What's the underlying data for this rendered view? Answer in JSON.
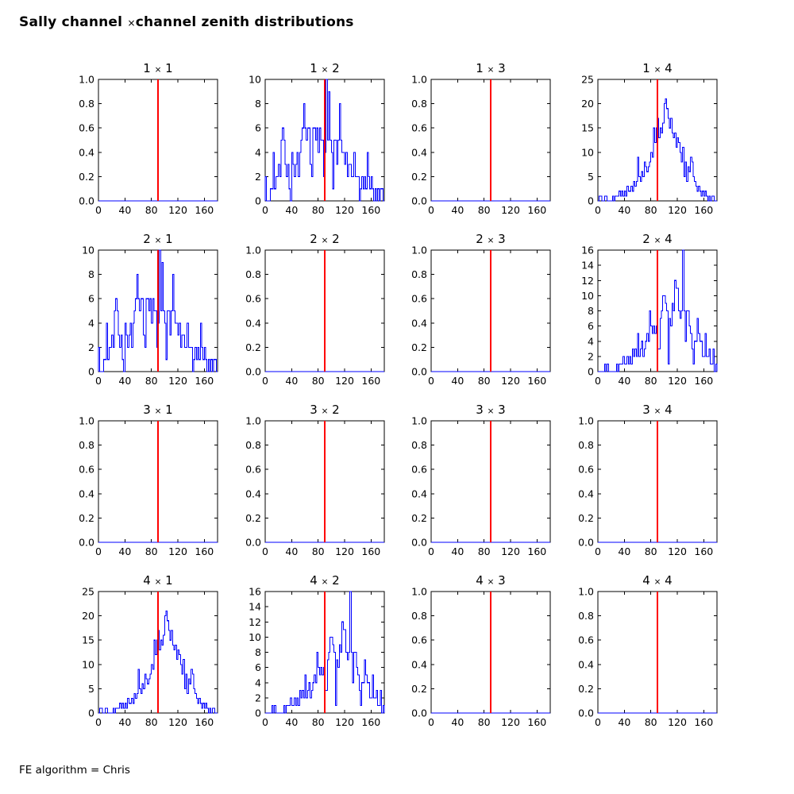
{
  "figure": {
    "title": "Sally channel ×channel zenith distributions",
    "footer": "FE algorithm = Chris",
    "background": "#ffffff"
  },
  "style": {
    "hist_color": "#0000ff",
    "marker_color": "#ff0000",
    "frame_color": "#000000",
    "text_color": "#000000"
  },
  "chart_data": {
    "type": "bar",
    "note": "4x4 grid of step histograms of zenith angle per channel pair; red vertical marker at x=90 in every panel; empty panels show a flat zero histogram",
    "x_axis": {
      "min": 0,
      "max": 180,
      "ticks": [
        0,
        40,
        80,
        120,
        160
      ],
      "bin_width": 2
    },
    "marker_x": 90,
    "subplots": [
      {
        "title": "1 × 1",
        "row": 1,
        "col": 1,
        "ylim": [
          0,
          1
        ],
        "yticks": [
          0,
          0.2,
          0.4,
          0.6,
          0.8,
          1.0
        ],
        "ytick_labels": [
          "0.0",
          "0.2",
          "0.4",
          "0.6",
          "0.8",
          "1.0"
        ],
        "xtick_labels": [
          "0",
          "40",
          "80",
          "120",
          "160"
        ],
        "values": []
      },
      {
        "title": "1 × 2",
        "row": 1,
        "col": 2,
        "ylim": [
          0,
          10
        ],
        "yticks": [
          0,
          2,
          4,
          6,
          8,
          10
        ],
        "ytick_labels": [
          "0",
          "2",
          "4",
          "6",
          "8",
          "10"
        ],
        "xtick_labels": [
          "0",
          "40",
          "80",
          "120",
          "160"
        ],
        "values": [
          2,
          0,
          0,
          0,
          1,
          1,
          4,
          1,
          2,
          2,
          3,
          2,
          5,
          6,
          5,
          3,
          2,
          3,
          1,
          0,
          4,
          3,
          2,
          3,
          4,
          2,
          4,
          5,
          6,
          8,
          6,
          5,
          6,
          6,
          3,
          2,
          6,
          6,
          5,
          6,
          4,
          6,
          5,
          5,
          2,
          4,
          10,
          5,
          9,
          5,
          4,
          1,
          5,
          5,
          3,
          5,
          8,
          5,
          4,
          4,
          3,
          4,
          2,
          3,
          3,
          2,
          2,
          4,
          2,
          2,
          2,
          0,
          1,
          2,
          1,
          2,
          1,
          4,
          2,
          1,
          2,
          1,
          0,
          1,
          0,
          1,
          0,
          1,
          1,
          0
        ]
      },
      {
        "title": "1 × 3",
        "row": 1,
        "col": 3,
        "ylim": [
          0,
          1
        ],
        "yticks": [
          0,
          0.2,
          0.4,
          0.6,
          0.8,
          1.0
        ],
        "ytick_labels": [
          "0.0",
          "0.2",
          "0.4",
          "0.6",
          "0.8",
          "1.0"
        ],
        "xtick_labels": [
          "0",
          "40",
          "80",
          "120",
          "160"
        ],
        "values": []
      },
      {
        "title": "1 × 4",
        "row": 1,
        "col": 4,
        "ylim": [
          0,
          25
        ],
        "yticks": [
          0,
          5,
          10,
          15,
          20,
          25
        ],
        "ytick_labels": [
          "0",
          "5",
          "10",
          "15",
          "20",
          "25"
        ],
        "xtick_labels": [
          "0",
          "40",
          "80",
          "120",
          "160"
        ],
        "values": [
          0,
          1,
          1,
          0,
          0,
          1,
          1,
          0,
          0,
          0,
          0,
          1,
          0,
          1,
          1,
          1,
          2,
          1,
          2,
          1,
          2,
          1,
          3,
          2,
          2,
          3,
          2,
          4,
          3,
          4,
          9,
          5,
          4,
          6,
          5,
          8,
          7,
          6,
          7,
          8,
          10,
          9,
          15,
          12,
          15,
          17,
          13,
          15,
          14,
          16,
          20,
          21,
          19,
          17,
          15,
          17,
          14,
          13,
          14,
          11,
          13,
          12,
          10,
          8,
          11,
          5,
          8,
          4,
          7,
          6,
          9,
          8,
          5,
          4,
          3,
          2,
          3,
          2,
          1,
          2,
          1,
          2,
          1,
          0,
          1,
          0,
          1,
          1,
          0,
          0
        ]
      },
      {
        "title": "2 × 1",
        "row": 2,
        "col": 1,
        "ylim": [
          0,
          10
        ],
        "yticks": [
          0,
          2,
          4,
          6,
          8,
          10
        ],
        "ytick_labels": [
          "0",
          "2",
          "4",
          "6",
          "8",
          "10"
        ],
        "xtick_labels": [
          "0",
          "40",
          "80",
          "120",
          "160"
        ],
        "values": [
          2,
          0,
          0,
          0,
          1,
          1,
          4,
          1,
          2,
          2,
          3,
          2,
          5,
          6,
          5,
          3,
          2,
          3,
          1,
          0,
          4,
          3,
          2,
          3,
          4,
          2,
          4,
          5,
          6,
          8,
          6,
          5,
          6,
          6,
          3,
          2,
          6,
          6,
          5,
          6,
          4,
          6,
          5,
          5,
          2,
          4,
          10,
          5,
          9,
          5,
          4,
          1,
          5,
          5,
          3,
          5,
          8,
          5,
          4,
          4,
          3,
          4,
          2,
          3,
          3,
          2,
          2,
          4,
          2,
          2,
          2,
          0,
          1,
          2,
          1,
          2,
          1,
          4,
          2,
          1,
          2,
          1,
          0,
          1,
          0,
          1,
          0,
          1,
          1,
          0
        ]
      },
      {
        "title": "2 × 2",
        "row": 2,
        "col": 2,
        "ylim": [
          0,
          1
        ],
        "yticks": [
          0,
          0.2,
          0.4,
          0.6,
          0.8,
          1.0
        ],
        "ytick_labels": [
          "0.0",
          "0.2",
          "0.4",
          "0.6",
          "0.8",
          "1.0"
        ],
        "xtick_labels": [
          "0",
          "40",
          "80",
          "120",
          "160"
        ],
        "values": []
      },
      {
        "title": "2 × 3",
        "row": 2,
        "col": 3,
        "ylim": [
          0,
          1
        ],
        "yticks": [
          0,
          0.2,
          0.4,
          0.6,
          0.8,
          1.0
        ],
        "ytick_labels": [
          "0.0",
          "0.2",
          "0.4",
          "0.6",
          "0.8",
          "1.0"
        ],
        "xtick_labels": [
          "0",
          "40",
          "80",
          "120",
          "160"
        ],
        "values": []
      },
      {
        "title": "2 × 4",
        "row": 2,
        "col": 4,
        "ylim": [
          0,
          16
        ],
        "yticks": [
          0,
          2,
          4,
          6,
          8,
          10,
          12,
          14,
          16
        ],
        "ytick_labels": [
          "0",
          "2",
          "4",
          "6",
          "8",
          "10",
          "12",
          "14",
          "16"
        ],
        "xtick_labels": [
          "0",
          "40",
          "80",
          "120",
          "160"
        ],
        "values": [
          0,
          0,
          0,
          0,
          0,
          1,
          0,
          1,
          0,
          0,
          0,
          0,
          0,
          0,
          1,
          0,
          1,
          1,
          1,
          2,
          1,
          1,
          2,
          1,
          2,
          1,
          3,
          2,
          3,
          2,
          5,
          2,
          3,
          4,
          2,
          3,
          4,
          5,
          4,
          8,
          6,
          5,
          6,
          5,
          6,
          3,
          3,
          7,
          8,
          10,
          10,
          9,
          8,
          1,
          7,
          6,
          9,
          8,
          12,
          11,
          11,
          8,
          7,
          8,
          16,
          8,
          4,
          8,
          8,
          6,
          5,
          3,
          1,
          4,
          4,
          7,
          5,
          4,
          4,
          2,
          2,
          5,
          2,
          2,
          3,
          1,
          1,
          3,
          0,
          1
        ]
      },
      {
        "title": "3 × 1",
        "row": 3,
        "col": 1,
        "ylim": [
          0,
          1
        ],
        "yticks": [
          0,
          0.2,
          0.4,
          0.6,
          0.8,
          1.0
        ],
        "ytick_labels": [
          "0.0",
          "0.2",
          "0.4",
          "0.6",
          "0.8",
          "1.0"
        ],
        "xtick_labels": [
          "0",
          "40",
          "80",
          "120",
          "160"
        ],
        "values": []
      },
      {
        "title": "3 × 2",
        "row": 3,
        "col": 2,
        "ylim": [
          0,
          1
        ],
        "yticks": [
          0,
          0.2,
          0.4,
          0.6,
          0.8,
          1.0
        ],
        "ytick_labels": [
          "0.0",
          "0.2",
          "0.4",
          "0.6",
          "0.8",
          "1.0"
        ],
        "xtick_labels": [
          "0",
          "40",
          "80",
          "120",
          "160"
        ],
        "values": []
      },
      {
        "title": "3 × 3",
        "row": 3,
        "col": 3,
        "ylim": [
          0,
          1
        ],
        "yticks": [
          0,
          0.2,
          0.4,
          0.6,
          0.8,
          1.0
        ],
        "ytick_labels": [
          "0.0",
          "0.2",
          "0.4",
          "0.6",
          "0.8",
          "1.0"
        ],
        "xtick_labels": [
          "0",
          "40",
          "80",
          "120",
          "160"
        ],
        "values": []
      },
      {
        "title": "3 × 4",
        "row": 3,
        "col": 4,
        "ylim": [
          0,
          1
        ],
        "yticks": [
          0,
          0.2,
          0.4,
          0.6,
          0.8,
          1.0
        ],
        "ytick_labels": [
          "0.0",
          "0.2",
          "0.4",
          "0.6",
          "0.8",
          "1.0"
        ],
        "xtick_labels": [
          "0",
          "40",
          "80",
          "120",
          "160"
        ],
        "values": []
      },
      {
        "title": "4 × 1",
        "row": 4,
        "col": 1,
        "ylim": [
          0,
          25
        ],
        "yticks": [
          0,
          5,
          10,
          15,
          20,
          25
        ],
        "ytick_labels": [
          "0",
          "5",
          "10",
          "15",
          "20",
          "25"
        ],
        "xtick_labels": [
          "0",
          "40",
          "80",
          "120",
          "160"
        ],
        "values": [
          0,
          1,
          1,
          0,
          0,
          1,
          1,
          0,
          0,
          0,
          0,
          1,
          0,
          1,
          1,
          1,
          2,
          1,
          2,
          1,
          2,
          1,
          3,
          2,
          2,
          3,
          2,
          4,
          3,
          4,
          9,
          5,
          4,
          6,
          5,
          8,
          7,
          6,
          7,
          8,
          10,
          9,
          15,
          12,
          15,
          17,
          13,
          15,
          14,
          16,
          20,
          21,
          19,
          17,
          15,
          17,
          14,
          13,
          14,
          11,
          13,
          12,
          10,
          8,
          11,
          5,
          8,
          4,
          7,
          6,
          9,
          8,
          5,
          4,
          3,
          2,
          3,
          2,
          1,
          2,
          1,
          2,
          1,
          0,
          1,
          0,
          1,
          1,
          0,
          0
        ]
      },
      {
        "title": "4 × 2",
        "row": 4,
        "col": 2,
        "ylim": [
          0,
          16
        ],
        "yticks": [
          0,
          2,
          4,
          6,
          8,
          10,
          12,
          14,
          16
        ],
        "ytick_labels": [
          "0",
          "2",
          "4",
          "6",
          "8",
          "10",
          "12",
          "14",
          "16"
        ],
        "xtick_labels": [
          "0",
          "40",
          "80",
          "120",
          "160"
        ],
        "values": [
          0,
          0,
          0,
          0,
          0,
          1,
          0,
          1,
          0,
          0,
          0,
          0,
          0,
          0,
          1,
          0,
          1,
          1,
          1,
          2,
          1,
          1,
          2,
          1,
          2,
          1,
          3,
          2,
          3,
          2,
          5,
          2,
          3,
          4,
          2,
          3,
          4,
          5,
          4,
          8,
          6,
          5,
          6,
          5,
          6,
          3,
          3,
          7,
          8,
          10,
          10,
          9,
          8,
          1,
          7,
          6,
          9,
          8,
          12,
          11,
          11,
          8,
          7,
          8,
          16,
          8,
          4,
          8,
          8,
          6,
          5,
          3,
          1,
          4,
          4,
          7,
          5,
          4,
          4,
          2,
          2,
          5,
          2,
          2,
          3,
          1,
          1,
          3,
          0,
          1
        ]
      },
      {
        "title": "4 × 3",
        "row": 4,
        "col": 3,
        "ylim": [
          0,
          1
        ],
        "yticks": [
          0,
          0.2,
          0.4,
          0.6,
          0.8,
          1.0
        ],
        "ytick_labels": [
          "0.0",
          "0.2",
          "0.4",
          "0.6",
          "0.8",
          "1.0"
        ],
        "xtick_labels": [
          "0",
          "40",
          "80",
          "120",
          "160"
        ],
        "values": []
      },
      {
        "title": "4 × 4",
        "row": 4,
        "col": 4,
        "ylim": [
          0,
          1
        ],
        "yticks": [
          0,
          0.2,
          0.4,
          0.6,
          0.8,
          1.0
        ],
        "ytick_labels": [
          "0.0",
          "0.2",
          "0.4",
          "0.6",
          "0.8",
          "1.0"
        ],
        "xtick_labels": [
          "0",
          "40",
          "80",
          "120",
          "160"
        ],
        "values": []
      }
    ]
  }
}
